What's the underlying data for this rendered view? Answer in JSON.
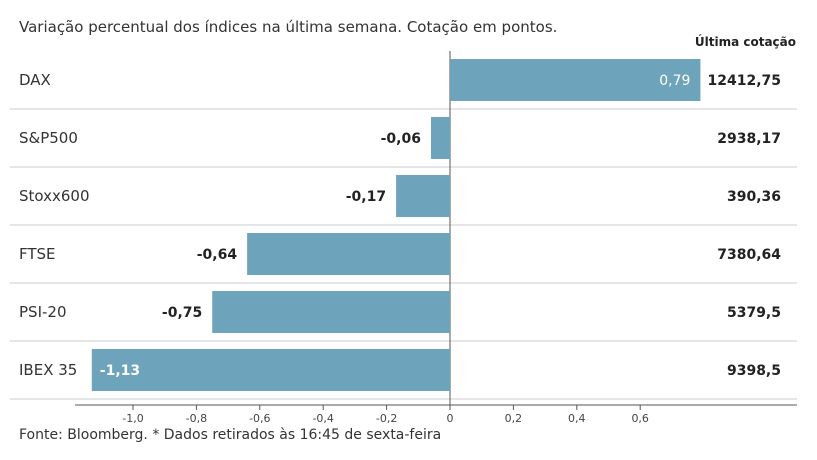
{
  "header": {
    "subtitle": "Variação percentual dos índices na última semana. Cotação em pontos.",
    "column_title": "Última cotação"
  },
  "footer": {
    "source": "Fonte: Bloomberg.  * Dados retirados às 16:45 de sexta-feira"
  },
  "colors": {
    "bar": "#6ea3bc",
    "grid": "#cccccc",
    "axis": "#555555"
  },
  "chart_data": {
    "type": "bar",
    "orientation": "horizontal",
    "categories": [
      "DAX",
      "S&P500",
      "Stoxx600",
      "FTSE",
      "PSI-20",
      "IBEX 35"
    ],
    "values": [
      0.79,
      -0.06,
      -0.17,
      -0.64,
      -0.75,
      -1.13
    ],
    "value_labels": [
      "0,79",
      "-0,06",
      "-0,17",
      "-0,64",
      "-0,75",
      "-1,13"
    ],
    "last_quote": [
      "12412,75",
      "2938,17",
      "390,36",
      "7380,64",
      "5379,5",
      "9398,5"
    ],
    "xlim": [
      -1.0,
      0.6
    ],
    "xticks": [
      -1.0,
      -0.8,
      -0.6,
      -0.4,
      -0.2,
      0,
      0.2,
      0.4,
      0.6
    ],
    "xtick_labels": [
      "-1,0",
      "-0,8",
      "-0,6",
      "-0,4",
      "-0,2",
      "0",
      "0,2",
      "0,4",
      "0,6"
    ],
    "grid": false
  }
}
